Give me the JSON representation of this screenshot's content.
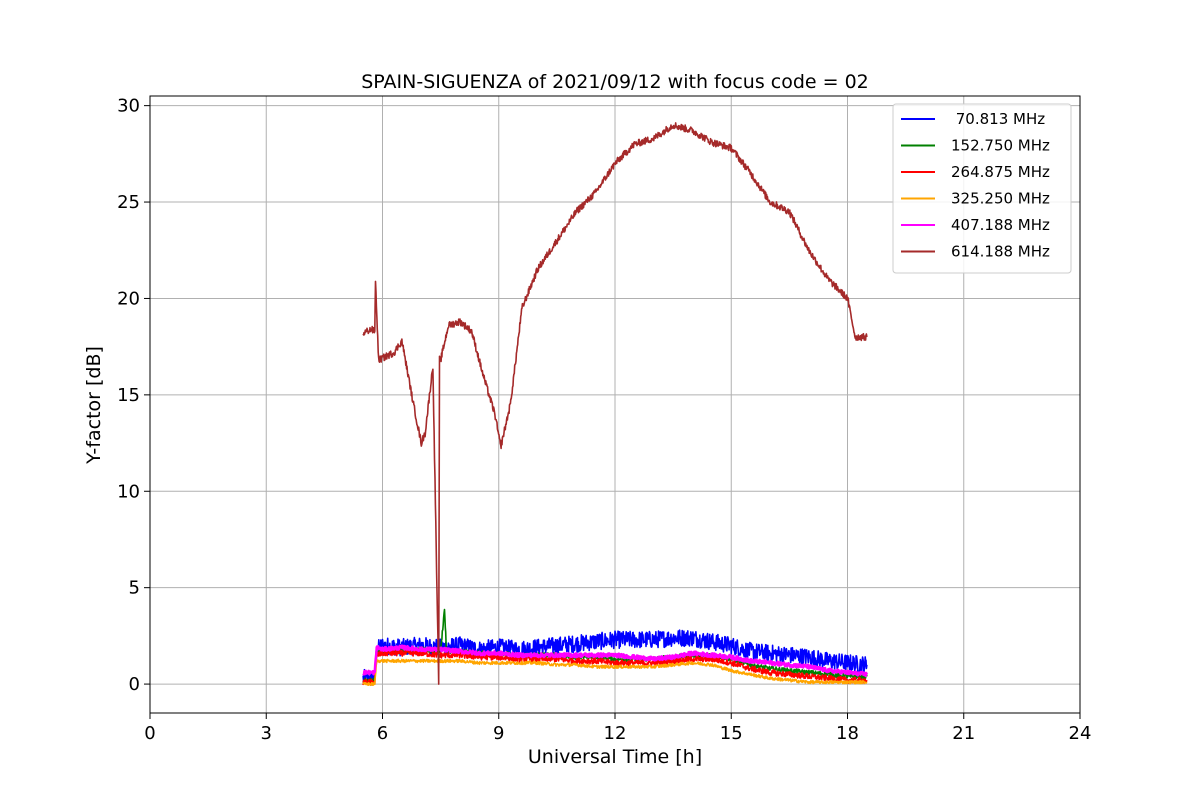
{
  "chart_data": {
    "type": "line",
    "title": "SPAIN-SIGUENZA of 2021/09/12 with focus code = 02",
    "xlabel": "Universal Time [h]",
    "ylabel": "Y-factor [dB]",
    "xlim": [
      0,
      24
    ],
    "ylim": [
      -1.5,
      30.5
    ],
    "xticks": [
      0,
      3,
      6,
      9,
      12,
      15,
      18,
      21,
      24
    ],
    "yticks": [
      0,
      5,
      10,
      15,
      20,
      25,
      30
    ],
    "grid": true,
    "legend_position": "top-right",
    "series": [
      {
        "name": " 70.813 MHz",
        "color": "#0000ff",
        "x": [
          5.5,
          5.8,
          5.85,
          6.0,
          6.5,
          7.0,
          7.5,
          8.0,
          8.5,
          9.0,
          9.5,
          10.0,
          10.5,
          11.0,
          11.5,
          12.0,
          12.5,
          13.0,
          13.5,
          14.0,
          14.5,
          15.0,
          15.5,
          16.0,
          16.5,
          17.0,
          17.5,
          18.0,
          18.5
        ],
        "y": [
          0.3,
          0.3,
          1.8,
          2.0,
          1.9,
          2.0,
          1.9,
          2.0,
          1.8,
          1.9,
          1.8,
          1.9,
          2.0,
          2.1,
          2.2,
          2.3,
          2.3,
          2.3,
          2.4,
          2.4,
          2.2,
          2.0,
          1.7,
          1.6,
          1.5,
          1.4,
          1.2,
          1.1,
          1.0
        ],
        "noise": 0.45
      },
      {
        "name": "152.750 MHz",
        "color": "#008000",
        "x": [
          5.5,
          5.8,
          5.85,
          6.0,
          6.5,
          7.0,
          7.5,
          7.6,
          7.65,
          8.0,
          8.5,
          9.0,
          9.5,
          10.0,
          10.5,
          11.0,
          11.5,
          12.0,
          12.5,
          13.0,
          13.5,
          14.0,
          14.5,
          15.0,
          15.5,
          16.0,
          16.5,
          17.0,
          17.5,
          18.0,
          18.5
        ],
        "y": [
          0.2,
          0.2,
          1.6,
          1.7,
          1.7,
          1.8,
          1.7,
          3.9,
          1.7,
          1.7,
          1.6,
          1.6,
          1.5,
          1.5,
          1.5,
          1.4,
          1.4,
          1.3,
          1.3,
          1.3,
          1.4,
          1.5,
          1.5,
          1.3,
          1.0,
          0.8,
          0.7,
          0.6,
          0.5,
          0.4,
          0.4
        ],
        "noise": 0.12
      },
      {
        "name": "264.875 MHz",
        "color": "#ff0000",
        "x": [
          5.5,
          5.8,
          5.85,
          6.0,
          6.5,
          7.0,
          7.5,
          8.0,
          8.5,
          9.0,
          9.5,
          10.0,
          10.5,
          11.0,
          11.5,
          12.0,
          12.5,
          13.0,
          13.5,
          14.0,
          14.5,
          15.0,
          15.5,
          16.0,
          16.5,
          17.0,
          17.5,
          18.0,
          18.5
        ],
        "y": [
          0.1,
          0.1,
          1.5,
          1.6,
          1.6,
          1.6,
          1.5,
          1.5,
          1.4,
          1.4,
          1.3,
          1.3,
          1.3,
          1.2,
          1.2,
          1.1,
          1.1,
          1.1,
          1.2,
          1.3,
          1.3,
          1.1,
          0.8,
          0.6,
          0.5,
          0.4,
          0.3,
          0.2,
          0.2
        ],
        "noise": 0.15
      },
      {
        "name": "325.250 MHz",
        "color": "#ffa500",
        "x": [
          5.5,
          5.8,
          5.85,
          6.0,
          6.5,
          7.0,
          7.5,
          8.0,
          8.5,
          9.0,
          9.5,
          10.0,
          10.5,
          11.0,
          11.5,
          12.0,
          12.5,
          13.0,
          13.5,
          14.0,
          14.5,
          15.0,
          15.5,
          16.0,
          16.5,
          17.0,
          17.5,
          18.0,
          18.5
        ],
        "y": [
          0.0,
          0.0,
          1.2,
          1.2,
          1.2,
          1.2,
          1.2,
          1.2,
          1.1,
          1.1,
          1.1,
          1.1,
          1.0,
          1.0,
          0.9,
          0.9,
          0.9,
          0.9,
          1.0,
          1.1,
          1.0,
          0.7,
          0.5,
          0.3,
          0.2,
          0.1,
          0.1,
          0.1,
          0.1
        ],
        "noise": 0.08
      },
      {
        "name": "407.188 MHz",
        "color": "#ff00ff",
        "x": [
          5.5,
          5.8,
          5.85,
          6.0,
          6.5,
          7.0,
          7.5,
          8.0,
          8.5,
          9.0,
          9.5,
          10.0,
          10.5,
          11.0,
          11.5,
          12.0,
          12.5,
          13.0,
          13.5,
          14.0,
          14.5,
          15.0,
          15.5,
          16.0,
          16.5,
          17.0,
          17.5,
          18.0,
          18.5
        ],
        "y": [
          0.6,
          0.6,
          1.9,
          1.8,
          1.9,
          1.8,
          1.8,
          1.7,
          1.6,
          1.6,
          1.5,
          1.5,
          1.5,
          1.5,
          1.5,
          1.5,
          1.4,
          1.3,
          1.4,
          1.6,
          1.5,
          1.4,
          1.2,
          1.1,
          1.0,
          0.9,
          0.7,
          0.6,
          0.5
        ],
        "noise": 0.1
      },
      {
        "name": "614.188 MHz",
        "color": "#a52a2a",
        "x": [
          5.5,
          5.7,
          5.8,
          5.82,
          5.9,
          6.3,
          6.5,
          6.8,
          7.0,
          7.1,
          7.3,
          7.45,
          7.47,
          7.5,
          7.7,
          8.0,
          8.3,
          8.6,
          8.9,
          9.05,
          9.3,
          9.6,
          10.0,
          10.5,
          11.0,
          11.5,
          12.0,
          12.5,
          13.0,
          13.5,
          14.0,
          14.5,
          15.0,
          15.5,
          16.0,
          16.5,
          17.0,
          17.5,
          18.0,
          18.2,
          18.5
        ],
        "y": [
          18.2,
          18.4,
          18.3,
          20.8,
          16.8,
          17.2,
          17.8,
          14.5,
          12.5,
          13.0,
          16.5,
          0.0,
          17.0,
          16.8,
          18.6,
          18.8,
          18.3,
          16.0,
          14.0,
          12.3,
          14.5,
          19.5,
          21.5,
          23.0,
          24.5,
          25.5,
          27.0,
          28.0,
          28.3,
          29.0,
          28.7,
          28.1,
          27.8,
          26.5,
          25.0,
          24.5,
          22.5,
          21.0,
          20.0,
          18.0,
          18.0
        ],
        "noise": 0.18
      }
    ]
  }
}
